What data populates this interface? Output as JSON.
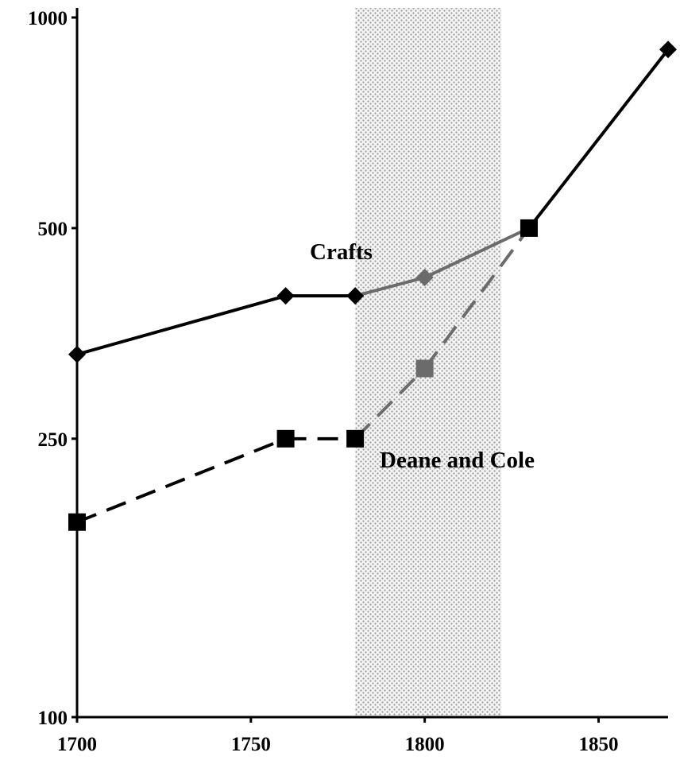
{
  "chart_data": {
    "type": "line",
    "title": "",
    "xlabel": "",
    "ylabel": "",
    "x_axis": {
      "range": [
        1700,
        1870
      ],
      "ticks": [
        1700,
        1750,
        1800,
        1850
      ],
      "tick_labels": [
        "1700",
        "1750",
        "1800",
        "1850"
      ]
    },
    "y_axis": {
      "scale": "log",
      "range": [
        100,
        1000
      ],
      "ticks": [
        100,
        250,
        500,
        1000
      ],
      "tick_labels": [
        "100",
        "250",
        "500",
        "1000"
      ]
    },
    "grid": false,
    "shaded_region": {
      "x": [
        1780,
        1822
      ],
      "pattern": "dotted",
      "color": "#9a9a9a"
    },
    "series": [
      {
        "name": "Crafts",
        "line_style": "solid",
        "marker": "diamond",
        "color": "#000000",
        "faded_color": "#6b6b6b",
        "points": [
          {
            "x": 1700,
            "y": 330
          },
          {
            "x": 1760,
            "y": 400
          },
          {
            "x": 1780,
            "y": 400
          },
          {
            "x": 1800,
            "y": 425
          },
          {
            "x": 1830,
            "y": 500
          },
          {
            "x": 1870,
            "y": 900
          }
        ]
      },
      {
        "name": "Deane and Cole",
        "line_style": "dashed",
        "marker": "square",
        "color": "#000000",
        "faded_color": "#6b6b6b",
        "points": [
          {
            "x": 1700,
            "y": 190
          },
          {
            "x": 1760,
            "y": 250
          },
          {
            "x": 1780,
            "y": 250
          },
          {
            "x": 1800,
            "y": 315
          },
          {
            "x": 1830,
            "y": 500
          }
        ]
      }
    ]
  }
}
